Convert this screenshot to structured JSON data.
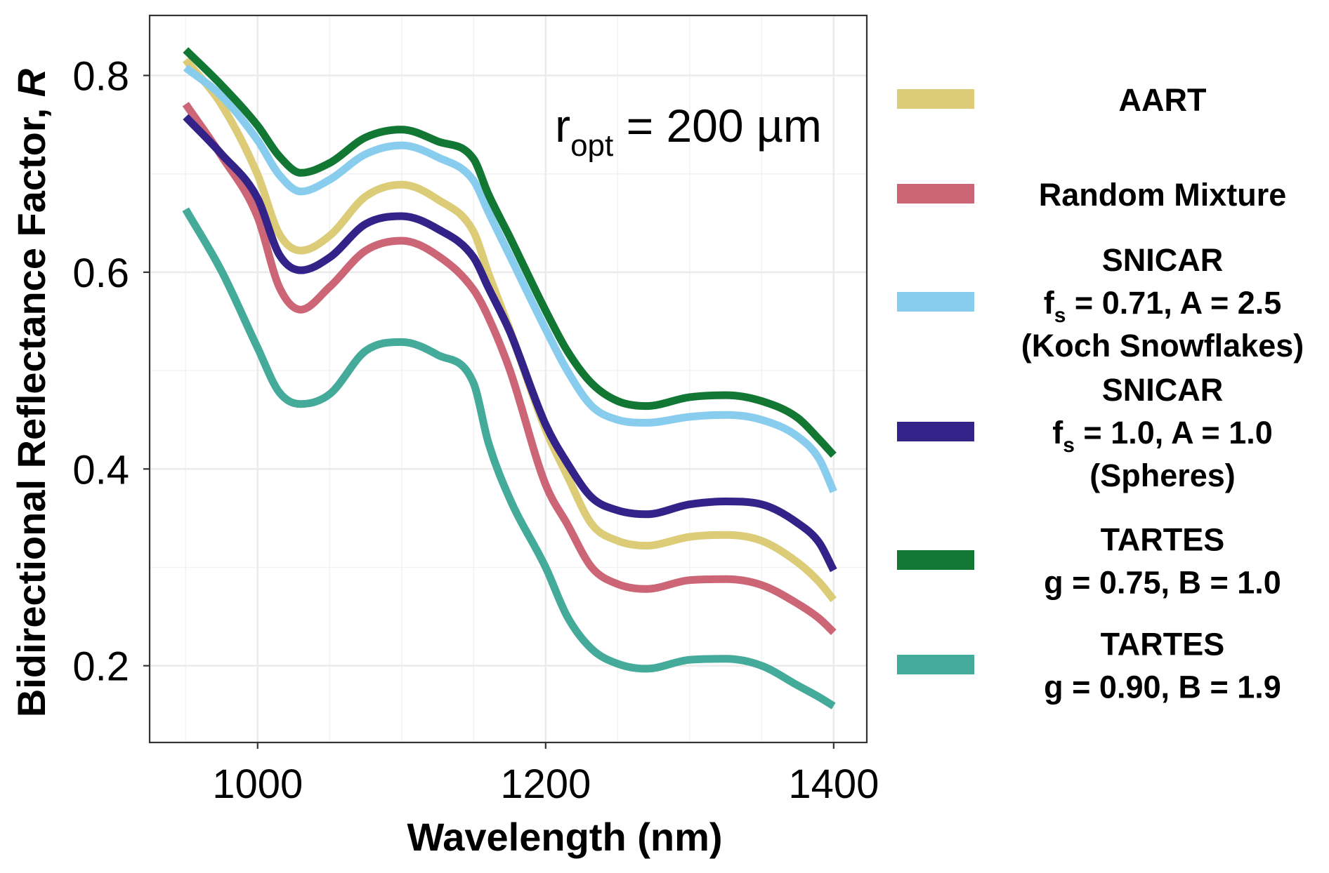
{
  "chart_data": {
    "type": "line",
    "title": "",
    "xlabel": "Wavelength (nm)",
    "ylabel": "Bidirectional Reflectance Factor, R",
    "ylabel_italic_part": "R",
    "xlim": [
      925,
      1423
    ],
    "ylim": [
      0.122,
      0.861
    ],
    "xticks": [
      1000,
      1200,
      1400
    ],
    "xtick_labels": [
      "1000",
      "1200",
      "1400"
    ],
    "x_minor_gridlines": [
      950,
      1050,
      1100,
      1150,
      1250,
      1300,
      1350
    ],
    "yticks": [
      0.2,
      0.4,
      0.6,
      0.8
    ],
    "ytick_labels": [
      "0.2",
      "0.4",
      "0.6",
      "0.8"
    ],
    "y_minor_gridlines": [
      0.3,
      0.5,
      0.7
    ],
    "grid": true,
    "legend_position": "right",
    "annotation": {
      "main": "r",
      "subscript": "opt",
      "rest": " = 200 µm",
      "position": "top-right"
    },
    "x": [
      950,
      975,
      1000,
      1015,
      1030,
      1050,
      1075,
      1100,
      1125,
      1150,
      1160,
      1175,
      1200,
      1215,
      1232,
      1250,
      1270,
      1300,
      1325,
      1350,
      1375,
      1390,
      1400
    ],
    "series": [
      {
        "name": "AART",
        "legend_lines": [
          {
            "text": "AART"
          }
        ],
        "color": "#DDCC77",
        "values": [
          0.816,
          0.77,
          0.699,
          0.639,
          0.622,
          0.637,
          0.677,
          0.689,
          0.674,
          0.641,
          0.6,
          0.542,
          0.44,
          0.393,
          0.344,
          0.327,
          0.322,
          0.331,
          0.333,
          0.327,
          0.305,
          0.285,
          0.267
        ]
      },
      {
        "name": "Random Mixture",
        "legend_lines": [
          {
            "text": "Random Mixture"
          }
        ],
        "color": "#CC6677",
        "values": [
          0.771,
          0.718,
          0.656,
          0.585,
          0.562,
          0.585,
          0.622,
          0.632,
          0.617,
          0.582,
          0.555,
          0.501,
          0.384,
          0.344,
          0.3,
          0.283,
          0.278,
          0.287,
          0.288,
          0.282,
          0.263,
          0.248,
          0.234
        ]
      },
      {
        "name": "SNICAR fs = 0.71, A = 2.5 (Koch Snowflakes)",
        "legend_lines": [
          {
            "text": "SNICAR"
          },
          {
            "text": "f",
            "sub": "s",
            "rest": " = 0.71, A = 2.5"
          },
          {
            "text": "(Koch Snowflakes)"
          }
        ],
        "color": "#88CCEE",
        "values": [
          0.808,
          0.779,
          0.734,
          0.699,
          0.682,
          0.694,
          0.72,
          0.729,
          0.717,
          0.693,
          0.662,
          0.617,
          0.542,
          0.5,
          0.464,
          0.45,
          0.447,
          0.453,
          0.455,
          0.45,
          0.433,
          0.41,
          0.377
        ]
      },
      {
        "name": "SNICAR fs = 1.0, A = 1.0 (Spheres)",
        "legend_lines": [
          {
            "text": "SNICAR"
          },
          {
            "text": "f",
            "sub": "s",
            "rest": " = 1.0, A = 1.0"
          },
          {
            "text": "(Spheres)"
          }
        ],
        "color": "#332288",
        "values": [
          0.758,
          0.72,
          0.675,
          0.618,
          0.602,
          0.615,
          0.649,
          0.657,
          0.644,
          0.615,
          0.585,
          0.54,
          0.445,
          0.406,
          0.371,
          0.358,
          0.354,
          0.364,
          0.367,
          0.364,
          0.345,
          0.325,
          0.297
        ]
      },
      {
        "name": "TARTES g = 0.75, B = 1.0",
        "legend_lines": [
          {
            "text": "TARTES"
          },
          {
            "text": "g = 0.75, B = 1.0"
          }
        ],
        "color": "#117733",
        "values": [
          0.826,
          0.79,
          0.749,
          0.718,
          0.701,
          0.711,
          0.737,
          0.745,
          0.733,
          0.715,
          0.68,
          0.636,
          0.561,
          0.52,
          0.487,
          0.469,
          0.464,
          0.473,
          0.475,
          0.469,
          0.452,
          0.43,
          0.414
        ]
      },
      {
        "name": "TARTES g = 0.90, B = 1.9",
        "legend_lines": [
          {
            "text": "TARTES"
          },
          {
            "text": "g = 0.90, B = 1.9"
          }
        ],
        "color": "#44AA99",
        "values": [
          0.664,
          0.601,
          0.523,
          0.478,
          0.466,
          0.476,
          0.52,
          0.529,
          0.516,
          0.487,
          0.428,
          0.37,
          0.3,
          0.25,
          0.217,
          0.202,
          0.197,
          0.206,
          0.207,
          0.2,
          0.18,
          0.168,
          0.159
        ]
      }
    ]
  }
}
